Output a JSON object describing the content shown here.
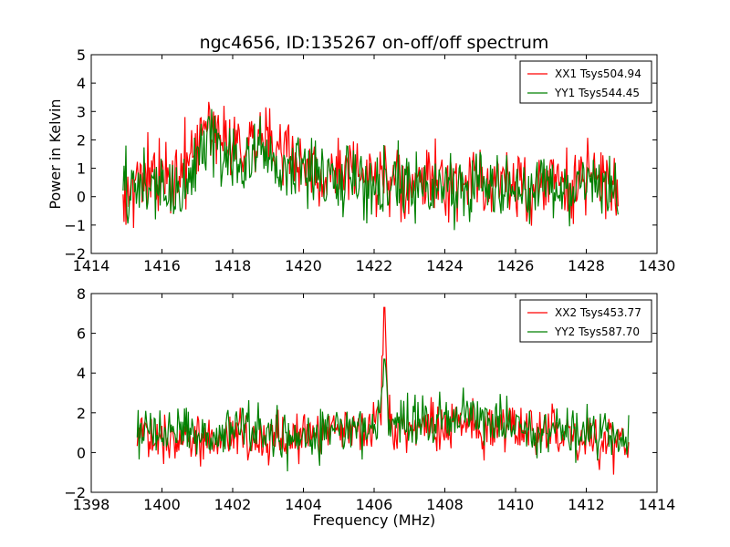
{
  "title": "ngc4656, ID:135267 on-off/off spectrum",
  "colors": {
    "xx": "#ff0000",
    "yy": "#008000",
    "axis": "#000000",
    "background": "#ffffff"
  },
  "chart_data": [
    {
      "type": "line",
      "title": "ngc4656, ID:135267 on-off/off spectrum",
      "xlabel": "",
      "ylabel": "Power in Kelvin",
      "xlim": [
        1414,
        1430
      ],
      "ylim": [
        -2,
        5
      ],
      "xticks": [
        1414,
        1416,
        1418,
        1420,
        1422,
        1424,
        1426,
        1428,
        1430
      ],
      "yticks": [
        -2,
        -1,
        0,
        1,
        2,
        3,
        4,
        5
      ],
      "grid": false,
      "legend_position": "top-right",
      "series": [
        {
          "name": "XX1 Tsys504.94",
          "color": "#ff0000",
          "x": [
            1414.9,
            1415.3,
            1415.7,
            1416.1,
            1416.5,
            1416.9,
            1417.1,
            1417.3,
            1417.5,
            1417.7,
            1418.0,
            1418.4,
            1418.8,
            1419.2,
            1419.6,
            1420.0,
            1420.3,
            1420.5,
            1420.7,
            1421.0,
            1421.4,
            1421.8,
            1422.2,
            1422.6,
            1422.9,
            1423.2,
            1423.6,
            1424.0,
            1424.4,
            1424.8,
            1425.2,
            1425.6,
            1426.0,
            1426.4,
            1426.8,
            1427.2,
            1427.6,
            1427.9,
            1428.2,
            1428.5,
            1428.9
          ],
          "y": [
            0.3,
            0.5,
            0.6,
            0.7,
            0.9,
            1.3,
            2.0,
            2.8,
            2.5,
            2.3,
            2.1,
            1.9,
            2.2,
            1.8,
            1.4,
            1.2,
            0.9,
            0.2,
            0.7,
            0.9,
            0.7,
            0.6,
            0.6,
            0.5,
            0.1,
            0.4,
            0.6,
            0.5,
            0.4,
            0.6,
            0.5,
            0.4,
            0.5,
            0.3,
            0.6,
            0.5,
            0.4,
            0.7,
            0.6,
            0.3,
            0.5
          ]
        },
        {
          "name": "YY1 Tsys544.45",
          "color": "#008000",
          "x": [
            1414.9,
            1415.3,
            1415.7,
            1416.1,
            1416.5,
            1416.9,
            1417.1,
            1417.3,
            1417.5,
            1417.7,
            1418.0,
            1418.4,
            1418.8,
            1419.2,
            1419.6,
            1420.0,
            1420.3,
            1420.5,
            1420.7,
            1421.0,
            1421.4,
            1421.8,
            1422.2,
            1422.6,
            1422.9,
            1423.2,
            1423.6,
            1424.0,
            1424.4,
            1424.8,
            1425.2,
            1425.6,
            1426.0,
            1426.4,
            1426.8,
            1427.2,
            1427.6,
            1427.9,
            1428.2,
            1428.5,
            1428.9
          ],
          "y": [
            0.2,
            0.3,
            0.4,
            0.3,
            0.0,
            0.9,
            1.6,
            2.2,
            2.0,
            1.6,
            1.3,
            1.2,
            1.5,
            1.1,
            1.0,
            1.0,
            0.7,
            0.5,
            0.8,
            0.8,
            0.6,
            0.5,
            0.5,
            0.4,
            0.2,
            0.3,
            0.5,
            0.4,
            0.3,
            0.5,
            0.4,
            0.3,
            0.4,
            0.2,
            0.4,
            0.3,
            0.3,
            0.5,
            0.4,
            0.2,
            0.3
          ]
        }
      ]
    },
    {
      "type": "line",
      "title": "",
      "xlabel": "Frequency (MHz)",
      "ylabel": "",
      "xlim": [
        1398,
        1414
      ],
      "ylim": [
        -2,
        8
      ],
      "xticks": [
        1398,
        1400,
        1402,
        1404,
        1406,
        1408,
        1410,
        1412,
        1414
      ],
      "yticks": [
        -2,
        0,
        2,
        4,
        6,
        8
      ],
      "grid": false,
      "legend_position": "top-right",
      "series": [
        {
          "name": "XX2 Tsys453.77",
          "color": "#ff0000",
          "x": [
            1399.3,
            1399.7,
            1400.1,
            1400.5,
            1400.9,
            1401.3,
            1401.7,
            1402.1,
            1402.5,
            1402.9,
            1403.3,
            1403.7,
            1404.1,
            1404.5,
            1404.9,
            1405.3,
            1405.7,
            1406.0,
            1406.2,
            1406.3,
            1406.4,
            1406.7,
            1407.1,
            1407.5,
            1407.9,
            1408.3,
            1408.7,
            1409.1,
            1409.5,
            1409.9,
            1410.3,
            1410.7,
            1411.1,
            1411.5,
            1411.9,
            1412.3,
            1412.7,
            1413.2
          ],
          "y": [
            0.8,
            0.9,
            0.9,
            0.8,
            0.8,
            0.7,
            0.9,
            1.0,
            0.9,
            0.8,
            0.8,
            0.7,
            0.9,
            1.0,
            1.2,
            1.3,
            1.2,
            1.1,
            2.5,
            7.3,
            2.0,
            1.3,
            1.3,
            1.5,
            1.4,
            1.3,
            1.3,
            1.2,
            1.3,
            1.3,
            1.2,
            1.1,
            1.0,
            0.9,
            0.8,
            0.5,
            0.7,
            0.6
          ]
        },
        {
          "name": "YY2 Tsys587.70",
          "color": "#008000",
          "x": [
            1399.3,
            1399.7,
            1400.1,
            1400.5,
            1400.9,
            1401.3,
            1401.7,
            1402.1,
            1402.5,
            1402.9,
            1403.3,
            1403.7,
            1404.1,
            1404.5,
            1404.9,
            1405.3,
            1405.7,
            1406.0,
            1406.2,
            1406.3,
            1406.4,
            1406.7,
            1407.1,
            1407.5,
            1407.9,
            1408.3,
            1408.7,
            1409.1,
            1409.5,
            1409.9,
            1410.3,
            1410.7,
            1411.1,
            1411.5,
            1411.9,
            1412.3,
            1412.7,
            1413.2
          ],
          "y": [
            1.0,
            1.2,
            1.1,
            1.0,
            1.1,
            0.9,
            1.2,
            1.3,
            1.1,
            1.0,
            0.9,
            0.8,
            1.0,
            0.9,
            1.1,
            1.3,
            1.2,
            1.1,
            2.0,
            4.7,
            1.8,
            1.4,
            1.5,
            1.7,
            1.9,
            2.0,
            1.9,
            1.7,
            1.6,
            1.5,
            1.4,
            1.3,
            1.2,
            1.1,
            1.1,
            1.0,
            0.9,
            0.8
          ]
        }
      ]
    }
  ]
}
